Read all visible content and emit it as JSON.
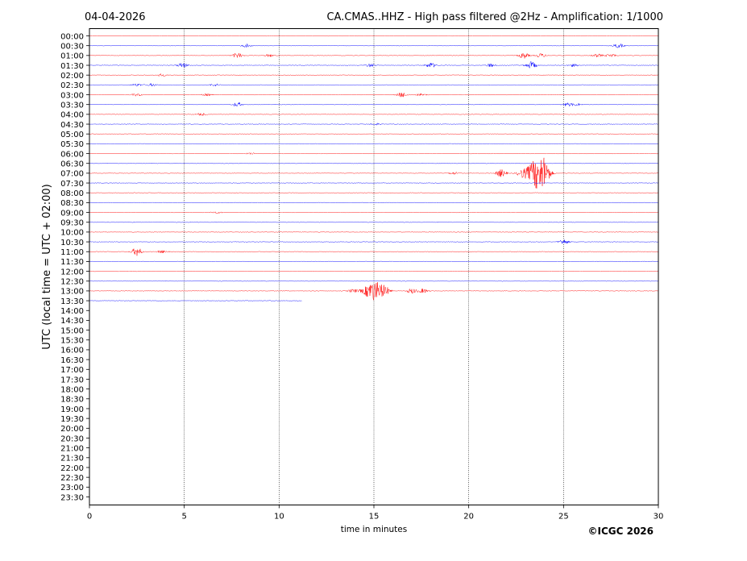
{
  "header": {
    "date": "04-04-2026",
    "title": "CA.CMAS..HHZ - High pass filtered @2Hz - Amplification: 1/1000"
  },
  "footer": {
    "copyright": "©ICGC 2026"
  },
  "chart_data": {
    "type": "line",
    "title": "CA.CMAS..HHZ - High pass filtered @2Hz - Amplification: 1/1000",
    "xlabel": "time in minutes",
    "ylabel": "UTC (local time = UTC + 02:00)",
    "xlim": [
      0,
      30
    ],
    "x_ticks": [
      0,
      5,
      10,
      15,
      20,
      25,
      30
    ],
    "vertical_gridlines_at": [
      5,
      10,
      15,
      20,
      25
    ],
    "row_labels": [
      "00:00",
      "00:30",
      "01:00",
      "01:30",
      "02:00",
      "02:30",
      "03:00",
      "03:30",
      "04:00",
      "04:30",
      "05:00",
      "05:30",
      "06:00",
      "06:30",
      "07:00",
      "07:30",
      "08:00",
      "08:30",
      "09:00",
      "09:30",
      "10:00",
      "10:30",
      "11:00",
      "11:30",
      "12:00",
      "12:30",
      "13:00",
      "13:30",
      "14:00",
      "14:30",
      "15:00",
      "15:30",
      "16:00",
      "16:30",
      "17:00",
      "17:30",
      "18:00",
      "18:30",
      "19:00",
      "19:30",
      "20:00",
      "20:30",
      "21:00",
      "21:30",
      "22:00",
      "22:30",
      "23:00",
      "23:30"
    ],
    "trace_colors": [
      "#ff0000",
      "#0000ff"
    ],
    "data_end_minute_last_row": 11.2,
    "last_row_with_data": "13:30",
    "events": [
      {
        "row": "00:30",
        "minute": 8.3,
        "amplitude": 0.2
      },
      {
        "row": "00:30",
        "minute": 27.9,
        "amplitude": 0.25
      },
      {
        "row": "01:00",
        "minute": 7.8,
        "amplitude": 0.3
      },
      {
        "row": "01:00",
        "minute": 9.5,
        "amplitude": 0.15
      },
      {
        "row": "01:00",
        "minute": 22.9,
        "amplitude": 0.35
      },
      {
        "row": "01:00",
        "minute": 23.8,
        "amplitude": 0.25
      },
      {
        "row": "01:00",
        "minute": 26.8,
        "amplitude": 0.2
      },
      {
        "row": "01:00",
        "minute": 27.5,
        "amplitude": 0.2
      },
      {
        "row": "01:30",
        "minute": 4.9,
        "amplitude": 0.3
      },
      {
        "row": "01:30",
        "minute": 14.8,
        "amplitude": 0.2
      },
      {
        "row": "01:30",
        "minute": 18.0,
        "amplitude": 0.3
      },
      {
        "row": "01:30",
        "minute": 21.2,
        "amplitude": 0.2
      },
      {
        "row": "01:30",
        "minute": 23.3,
        "amplitude": 0.45
      },
      {
        "row": "01:30",
        "minute": 25.5,
        "amplitude": 0.15
      },
      {
        "row": "02:00",
        "minute": 3.8,
        "amplitude": 0.15
      },
      {
        "row": "02:30",
        "minute": 2.5,
        "amplitude": 0.15
      },
      {
        "row": "02:30",
        "minute": 3.3,
        "amplitude": 0.15
      },
      {
        "row": "02:30",
        "minute": 6.6,
        "amplitude": 0.15
      },
      {
        "row": "03:00",
        "minute": 2.5,
        "amplitude": 0.15
      },
      {
        "row": "03:00",
        "minute": 6.2,
        "amplitude": 0.12
      },
      {
        "row": "03:00",
        "minute": 16.5,
        "amplitude": 0.3
      },
      {
        "row": "03:00",
        "minute": 17.5,
        "amplitude": 0.15
      },
      {
        "row": "03:30",
        "minute": 7.8,
        "amplitude": 0.25
      },
      {
        "row": "03:30",
        "minute": 25.2,
        "amplitude": 0.2
      },
      {
        "row": "03:30",
        "minute": 25.7,
        "amplitude": 0.15
      },
      {
        "row": "04:00",
        "minute": 5.9,
        "amplitude": 0.15
      },
      {
        "row": "04:30",
        "minute": 15.1,
        "amplitude": 0.12
      },
      {
        "row": "06:00",
        "minute": 8.5,
        "amplitude": 0.1
      },
      {
        "row": "07:00",
        "minute": 19.2,
        "amplitude": 0.15
      },
      {
        "row": "07:00",
        "minute": 21.7,
        "amplitude": 0.45
      },
      {
        "row": "07:00",
        "minute": 22.8,
        "amplitude": 0.4
      },
      {
        "row": "07:00",
        "minute": 23.6,
        "amplitude": 1.8
      },
      {
        "row": "07:00",
        "minute": 24.0,
        "amplitude": 1.0
      },
      {
        "row": "09:00",
        "minute": 6.7,
        "amplitude": 0.12
      },
      {
        "row": "10:30",
        "minute": 25.0,
        "amplitude": 0.3
      },
      {
        "row": "11:00",
        "minute": 2.5,
        "amplitude": 0.5
      },
      {
        "row": "11:00",
        "minute": 3.8,
        "amplitude": 0.15
      },
      {
        "row": "13:00",
        "minute": 13.9,
        "amplitude": 0.2
      },
      {
        "row": "13:00",
        "minute": 15.0,
        "amplitude": 1.2
      },
      {
        "row": "13:00",
        "minute": 15.6,
        "amplitude": 0.35
      },
      {
        "row": "13:00",
        "minute": 17.0,
        "amplitude": 0.3
      },
      {
        "row": "13:00",
        "minute": 17.6,
        "amplitude": 0.25
      }
    ]
  }
}
